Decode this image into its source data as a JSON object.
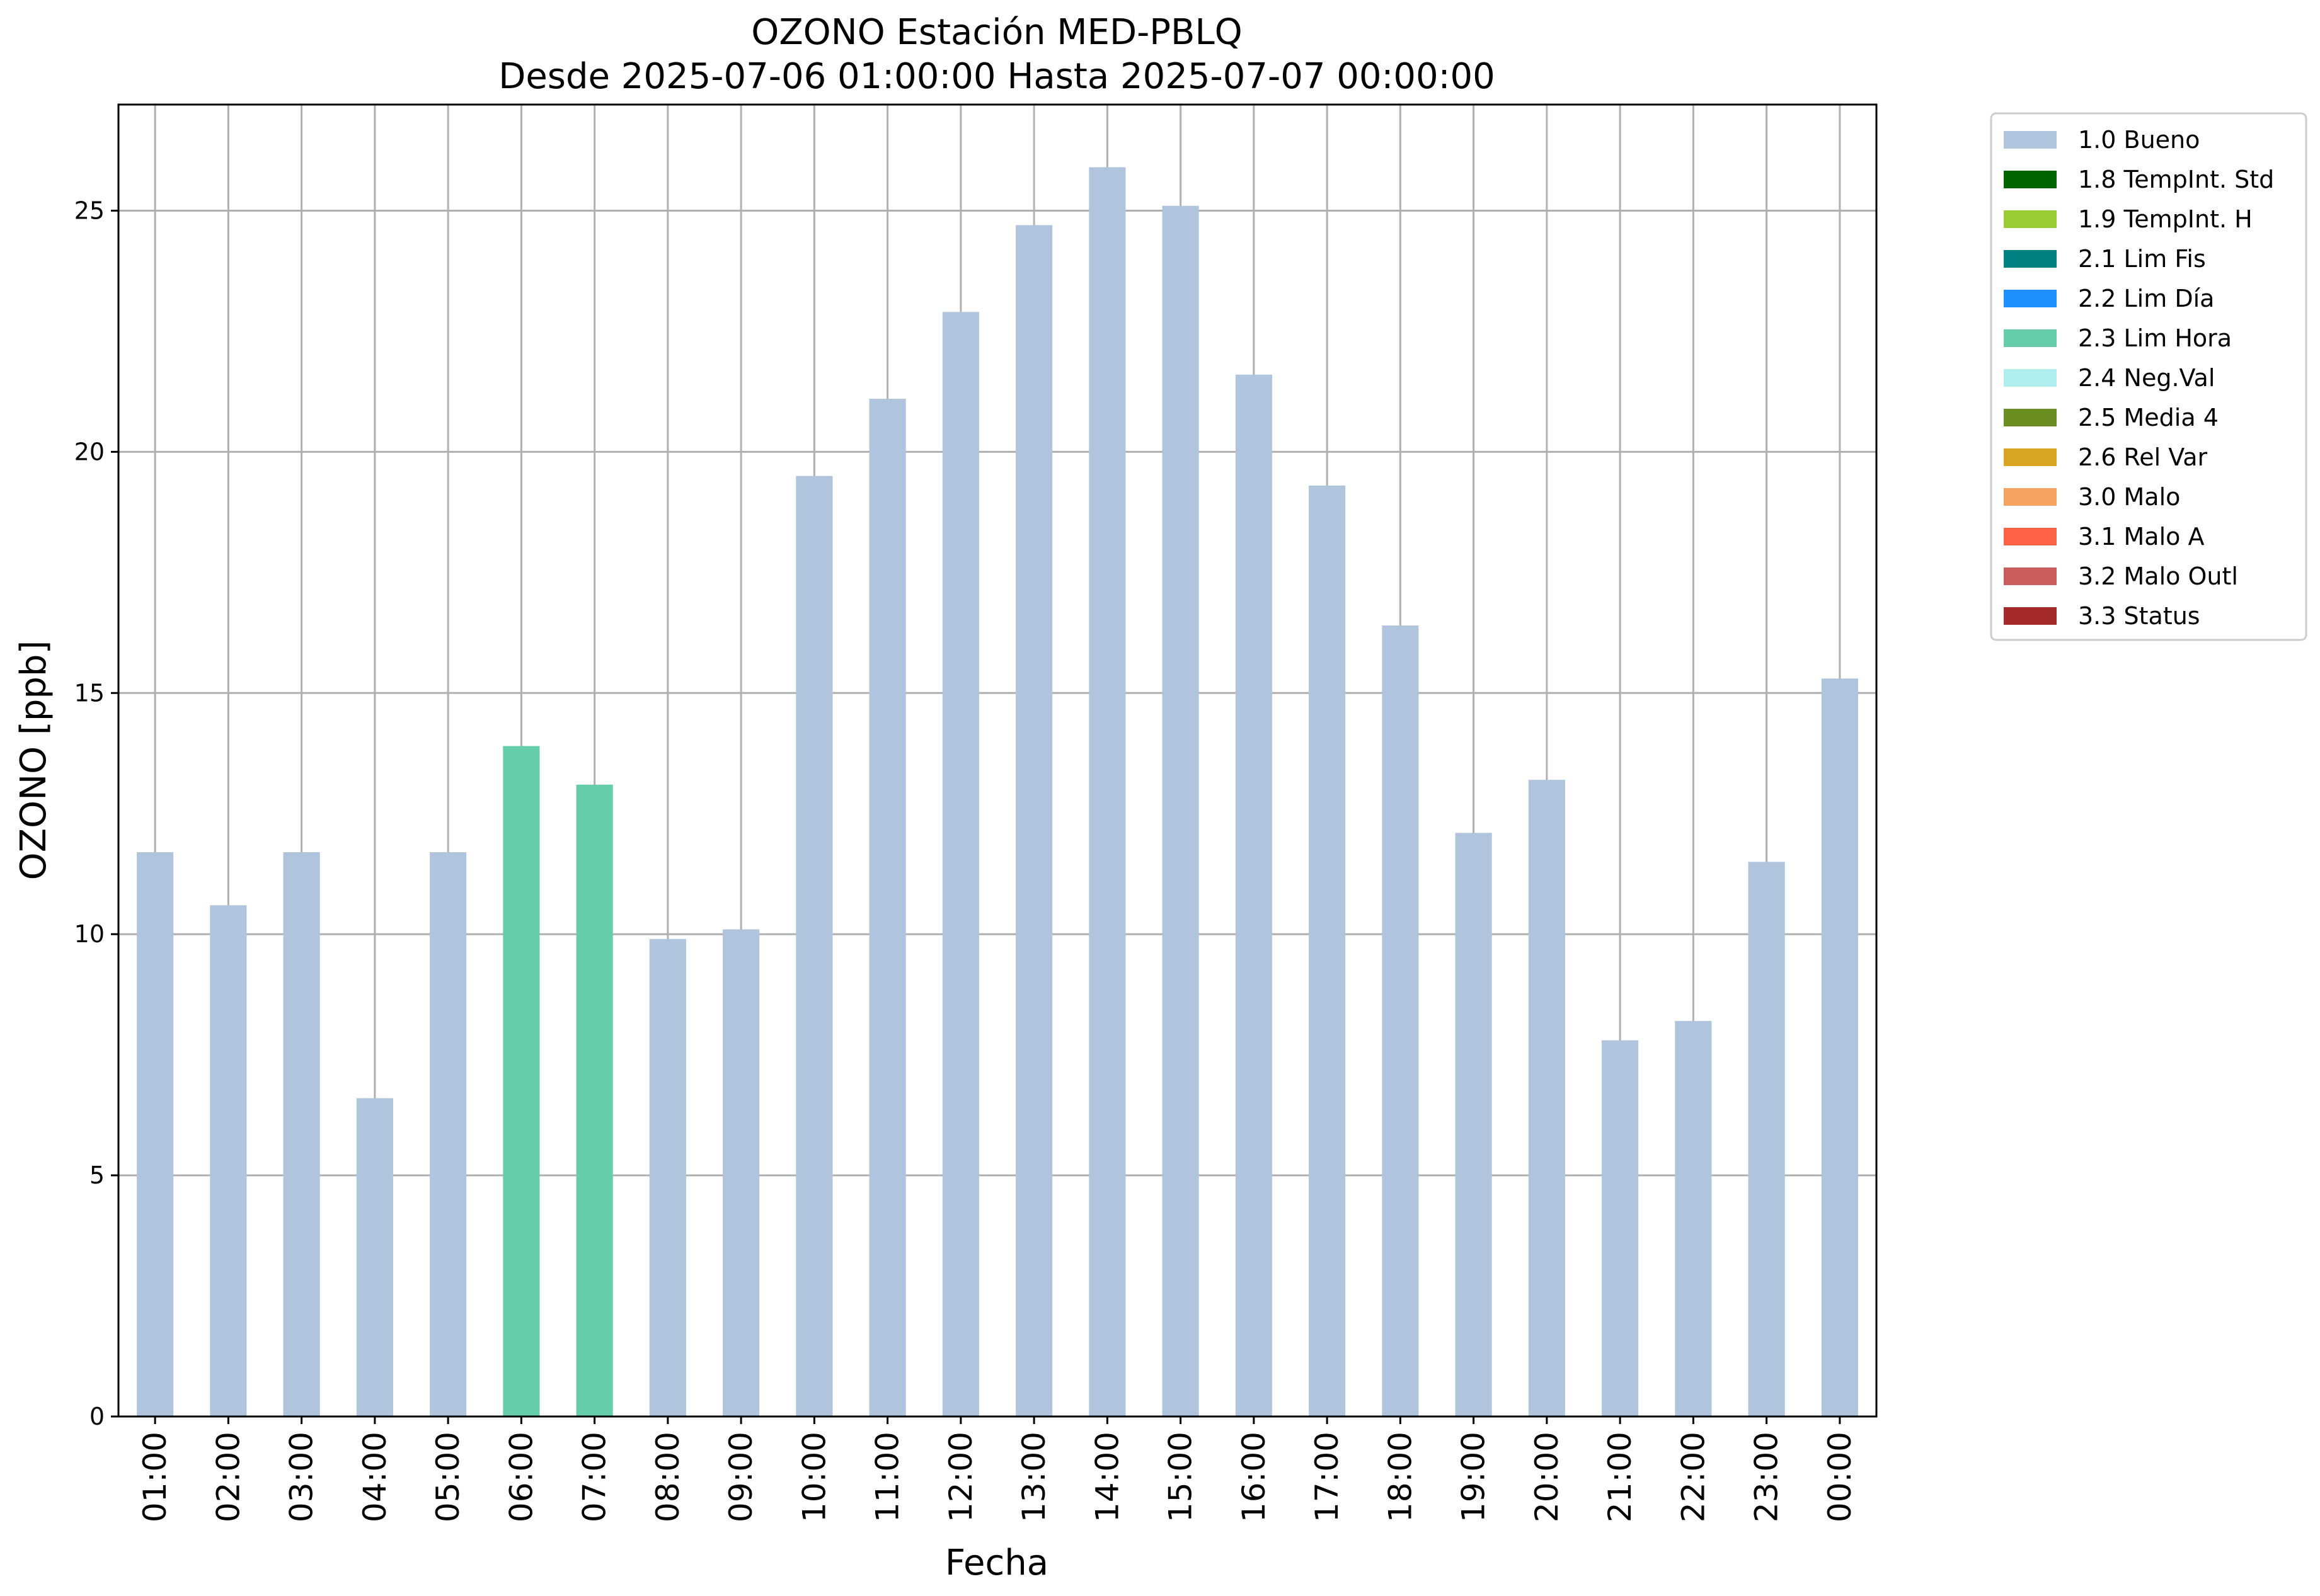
{
  "chart_data": {
    "type": "bar",
    "title": "OZONO Estación MED-PBLQ",
    "subtitle": "Desde 2025-07-06 01:00:00 Hasta 2025-07-07 00:00:00",
    "xlabel": "Fecha",
    "ylabel": "OZONO [ppb]",
    "ylim": [
      0,
      27.2
    ],
    "yticks": [
      0,
      5,
      10,
      15,
      20,
      25
    ],
    "grid": true,
    "legend_position": "outside-right-top",
    "categories": [
      "01:00",
      "02:00",
      "03:00",
      "04:00",
      "05:00",
      "06:00",
      "07:00",
      "08:00",
      "09:00",
      "10:00",
      "11:00",
      "12:00",
      "13:00",
      "14:00",
      "15:00",
      "16:00",
      "17:00",
      "18:00",
      "19:00",
      "20:00",
      "21:00",
      "22:00",
      "23:00",
      "00:00"
    ],
    "values": [
      11.7,
      10.6,
      11.7,
      6.6,
      11.7,
      13.9,
      13.1,
      9.9,
      10.1,
      19.5,
      21.1,
      22.9,
      24.7,
      25.9,
      25.1,
      21.6,
      19.3,
      16.4,
      12.1,
      13.2,
      7.8,
      8.2,
      11.5,
      15.3
    ],
    "flags": [
      "1.0 Bueno",
      "1.0 Bueno",
      "1.0 Bueno",
      "1.0 Bueno",
      "1.0 Bueno",
      "2.3 Lim Hora",
      "2.3 Lim Hora",
      "1.0 Bueno",
      "1.0 Bueno",
      "1.0 Bueno",
      "1.0 Bueno",
      "1.0 Bueno",
      "1.0 Bueno",
      "1.0 Bueno",
      "1.0 Bueno",
      "1.0 Bueno",
      "1.0 Bueno",
      "1.0 Bueno",
      "1.0 Bueno",
      "1.0 Bueno",
      "1.0 Bueno",
      "1.0 Bueno",
      "1.0 Bueno",
      "1.0 Bueno"
    ],
    "legend": [
      {
        "label": "1.0 Bueno",
        "color": "#b0c4de"
      },
      {
        "label": "1.8 TempInt. Std",
        "color": "#006400"
      },
      {
        "label": "1.9 TempInt. H",
        "color": "#9acd32"
      },
      {
        "label": "2.1 Lim Fis",
        "color": "#008080"
      },
      {
        "label": "2.2 Lim Día",
        "color": "#1e90ff"
      },
      {
        "label": "2.3 Lim Hora",
        "color": "#66cdaa"
      },
      {
        "label": "2.4 Neg.Val",
        "color": "#afeeee"
      },
      {
        "label": "2.5 Media 4",
        "color": "#6b8e23"
      },
      {
        "label": "2.6 Rel Var",
        "color": "#daa520"
      },
      {
        "label": "3.0 Malo",
        "color": "#f4a460"
      },
      {
        "label": "3.1 Malo A",
        "color": "#ff6347"
      },
      {
        "label": "3.2 Malo Outl",
        "color": "#cd5c5c"
      },
      {
        "label": "3.3 Status",
        "color": "#a52a2a"
      }
    ]
  }
}
